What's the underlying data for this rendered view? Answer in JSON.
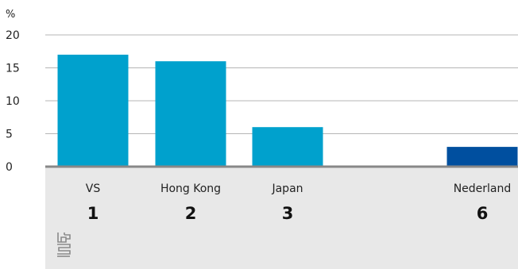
{
  "chart_data": {
    "type": "bar",
    "unit": "%",
    "categories": [
      "VS",
      "Hong Kong",
      "Japan",
      "Nederland"
    ],
    "ranks": [
      "1",
      "2",
      "3",
      "6"
    ],
    "values": [
      17,
      16,
      6,
      3
    ],
    "ylim": [
      0,
      20
    ],
    "yticks": [
      "0",
      "5",
      "10",
      "15",
      "20"
    ],
    "grid": true,
    "colors": {
      "default": "#00a1cd",
      "highlight": "#004f9f",
      "panel": "#e8e8e8",
      "axis": "#888888",
      "grid": "#b5b5b5"
    },
    "highlight_index": 3
  },
  "logo": {
    "name": "cbs-logo-icon"
  }
}
